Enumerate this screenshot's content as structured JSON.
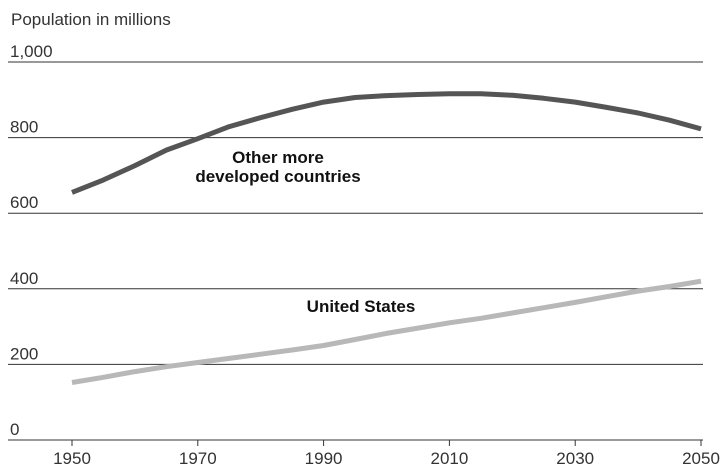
{
  "chart_data": {
    "type": "line",
    "ylabel": "Population in millions",
    "ylim": [
      0,
      1000
    ],
    "y_ticks": [
      "0",
      "200",
      "400",
      "600",
      "800",
      "1,000"
    ],
    "x_ticks": [
      "1950",
      "1970",
      "1990",
      "2010",
      "2030",
      "2050"
    ],
    "xlim": [
      1950,
      2050
    ],
    "grid": "horizontal",
    "series": [
      {
        "name": "Other more developed countries",
        "label_lines": [
          "Other more",
          "developed countries"
        ],
        "color": "#555555",
        "points": [
          [
            1950,
            655
          ],
          [
            1955,
            688
          ],
          [
            1960,
            726
          ],
          [
            1965,
            767
          ],
          [
            1970,
            797
          ],
          [
            1975,
            829
          ],
          [
            1980,
            853
          ],
          [
            1985,
            875
          ],
          [
            1990,
            894
          ],
          [
            1995,
            906
          ],
          [
            2000,
            911
          ],
          [
            2005,
            914
          ],
          [
            2010,
            916
          ],
          [
            2015,
            916
          ],
          [
            2020,
            912
          ],
          [
            2025,
            904
          ],
          [
            2030,
            894
          ],
          [
            2035,
            880
          ],
          [
            2040,
            865
          ],
          [
            2045,
            846
          ],
          [
            2050,
            823
          ]
        ]
      },
      {
        "name": "United States",
        "label_lines": [
          "United States"
        ],
        "color": "#b8b8b8",
        "points": [
          [
            1950,
            152
          ],
          [
            1955,
            166
          ],
          [
            1960,
            181
          ],
          [
            1965,
            194
          ],
          [
            1970,
            205
          ],
          [
            1975,
            216
          ],
          [
            1980,
            227
          ],
          [
            1985,
            238
          ],
          [
            1990,
            250
          ],
          [
            1995,
            266
          ],
          [
            2000,
            282
          ],
          [
            2005,
            296
          ],
          [
            2010,
            310
          ],
          [
            2015,
            322
          ],
          [
            2020,
            336
          ],
          [
            2025,
            350
          ],
          [
            2030,
            364
          ],
          [
            2035,
            379
          ],
          [
            2040,
            394
          ],
          [
            2045,
            406
          ],
          [
            2050,
            420
          ]
        ]
      }
    ]
  }
}
